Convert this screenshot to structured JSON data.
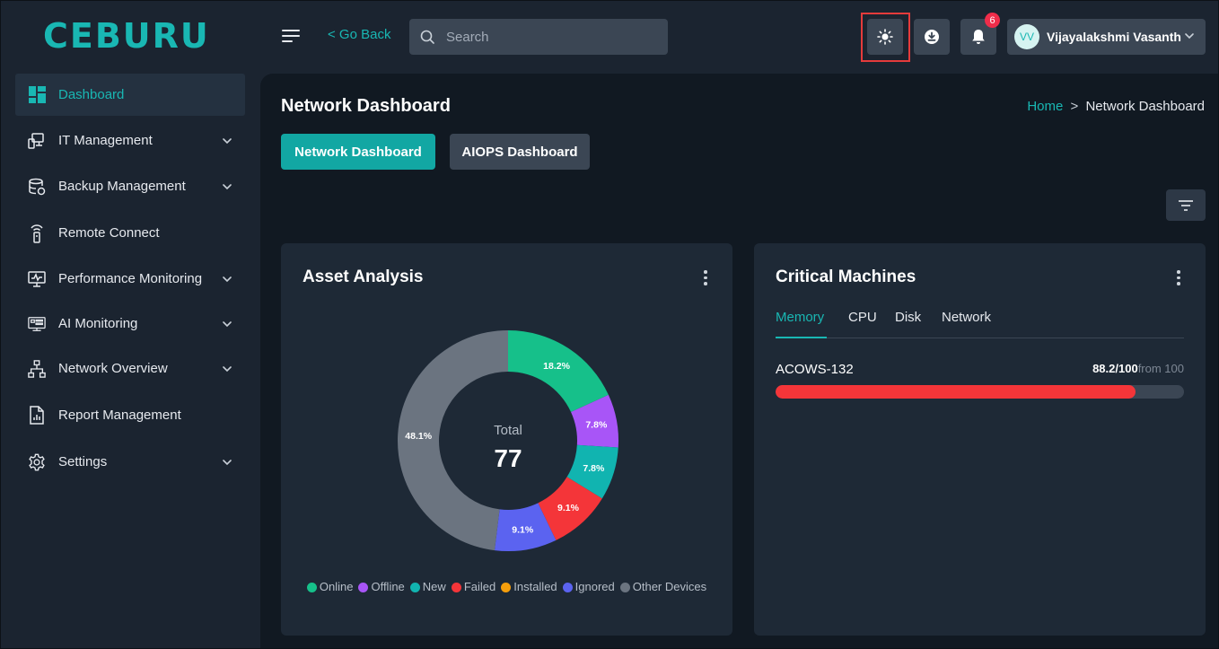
{
  "app": {
    "logo_text": "CEBURU"
  },
  "header": {
    "go_back_label": "< Go Back",
    "search_placeholder": "Search",
    "notification_count": "6",
    "user_initials": "VV",
    "user_name": "Vijayalakshmi Vasanth",
    "icons": [
      "menu-icon",
      "search-icon",
      "sun-icon",
      "download-icon",
      "bell-icon",
      "chevron-down-icon"
    ]
  },
  "sidebar": {
    "items": [
      {
        "label": "Dashboard",
        "icon": "grid-icon",
        "active": true,
        "expandable": false
      },
      {
        "label": "IT Management",
        "icon": "devices-icon",
        "expandable": true
      },
      {
        "label": "Backup Management",
        "icon": "database-icon",
        "expandable": true
      },
      {
        "label": "Remote Connect",
        "icon": "remote-icon",
        "expandable": false
      },
      {
        "label": "Performance Monitoring",
        "icon": "monitor-icon",
        "expandable": true
      },
      {
        "label": "AI Monitoring",
        "icon": "ai-monitor-icon",
        "expandable": true
      },
      {
        "label": "Network Overview",
        "icon": "network-icon",
        "expandable": true
      },
      {
        "label": "Report Management",
        "icon": "report-icon",
        "expandable": false
      },
      {
        "label": "Settings",
        "icon": "gear-icon",
        "expandable": true
      }
    ]
  },
  "page": {
    "title": "Network Dashboard",
    "breadcrumb": {
      "home": "Home",
      "separator": ">",
      "current": "Network Dashboard"
    },
    "tabs": [
      {
        "label": "Network Dashboard",
        "active": true
      },
      {
        "label": "AIOPS Dashboard",
        "active": false
      }
    ]
  },
  "asset_analysis": {
    "title": "Asset Analysis",
    "center_label": "Total",
    "center_value": "77",
    "legend": [
      "Online",
      "Offline",
      "New",
      "Failed",
      "Installed",
      "Ignored",
      "Other Devices"
    ]
  },
  "critical_machines": {
    "title": "Critical Machines",
    "tabs": [
      "Memory",
      "CPU",
      "Disk",
      "Network"
    ],
    "active_tab": "Memory",
    "machine": {
      "name": "ACOWS-132",
      "value": "88.2/100",
      "suffix": "from 100",
      "fraction": 0.882
    }
  },
  "colors": {
    "accent": "#19b7b3",
    "online": "#16c08a",
    "offline": "#a855f7",
    "new": "#11b4b0",
    "failed": "#f43539",
    "installed": "#f59e0b",
    "ignored": "#5b63f0",
    "other": "#6b7480"
  },
  "chart_data": {
    "type": "pie",
    "title": "Asset Analysis",
    "categories": [
      "Online",
      "Offline",
      "New",
      "Failed",
      "Installed",
      "Ignored",
      "Other Devices"
    ],
    "values": [
      18.2,
      7.8,
      7.8,
      9.1,
      0,
      9.1,
      48.1
    ],
    "labels": [
      "18.2%",
      "7.8%",
      "7.8%",
      "9.1%",
      "",
      "9.1%",
      "48.1%"
    ],
    "colors": [
      "#16c08a",
      "#a855f7",
      "#11b4b0",
      "#f43539",
      "#f59e0b",
      "#5b63f0",
      "#6b7480"
    ],
    "legend_placement": "bottom"
  }
}
